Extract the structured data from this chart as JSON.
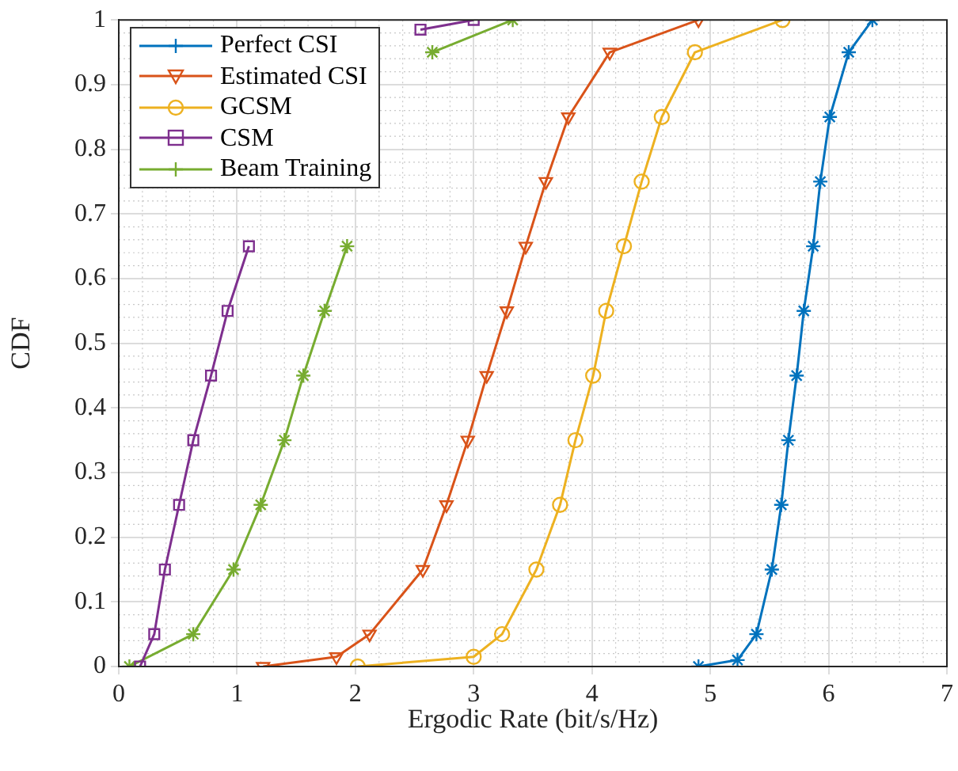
{
  "chart_data": {
    "type": "line",
    "xlabel": "Ergodic Rate (bit/s/Hz)",
    "ylabel": "CDF",
    "xlim": [
      0,
      7
    ],
    "xticks": [
      0,
      1,
      2,
      3,
      4,
      5,
      6,
      7
    ],
    "ylim": [
      0,
      1
    ],
    "yticks": [
      0,
      0.1,
      0.2,
      0.3,
      0.4,
      0.5,
      0.6,
      0.7,
      0.8,
      0.9,
      1
    ],
    "grid": true,
    "legend": "top left",
    "line_style": "solid",
    "series": [
      {
        "name": "Perfect CSI",
        "color": "#0072bd",
        "marker": "cross",
        "x": [
          4.9,
          5.23,
          5.39,
          5.52,
          5.6,
          5.66,
          5.73,
          5.79,
          5.87,
          5.93,
          6.01,
          6.17,
          6.37
        ],
        "values": [
          0,
          0.01,
          0.05,
          0.15,
          0.25,
          0.35,
          0.45,
          0.55,
          0.65,
          0.75,
          0.85,
          0.95,
          1
        ]
      },
      {
        "name": "Estimated CSI",
        "color": "#d95319",
        "marker": "triangle",
        "x": [
          1.22,
          1.84,
          2.12,
          2.57,
          2.77,
          2.95,
          3.11,
          3.28,
          3.44,
          3.61,
          3.8,
          4.15,
          4.9
        ],
        "values": [
          0,
          0.015,
          0.05,
          0.15,
          0.25,
          0.35,
          0.45,
          0.55,
          0.65,
          0.75,
          0.85,
          0.95,
          1
        ]
      },
      {
        "name": "GCSM",
        "color": "#edb120",
        "marker": "circle",
        "x": [
          2.02,
          3.0,
          3.24,
          3.53,
          3.73,
          3.86,
          4.01,
          4.12,
          4.27,
          4.42,
          4.59,
          4.87,
          5.61
        ],
        "values": [
          0,
          0.015,
          0.05,
          0.15,
          0.25,
          0.35,
          0.45,
          0.55,
          0.65,
          0.75,
          0.85,
          0.95,
          1
        ]
      },
      {
        "name": "CSM",
        "color": "#7e2f8e",
        "marker": "square",
        "x": [
          0.18,
          0.3,
          0.39,
          0.51,
          0.63,
          0.78,
          0.92,
          1.1,
          null,
          2.55,
          3.0
        ],
        "values": [
          0,
          0.05,
          0.15,
          0.25,
          0.35,
          0.45,
          0.55,
          0.65,
          null,
          0.985,
          1
        ]
      },
      {
        "name": "Beam Training",
        "color": "#77ac30",
        "marker": "cross",
        "x": [
          0.09,
          0.63,
          0.97,
          1.2,
          1.4,
          1.56,
          1.74,
          1.93,
          null,
          2.65,
          3.33
        ],
        "values": [
          0,
          0.05,
          0.15,
          0.25,
          0.35,
          0.45,
          0.55,
          0.65,
          null,
          0.95,
          1
        ]
      }
    ]
  }
}
